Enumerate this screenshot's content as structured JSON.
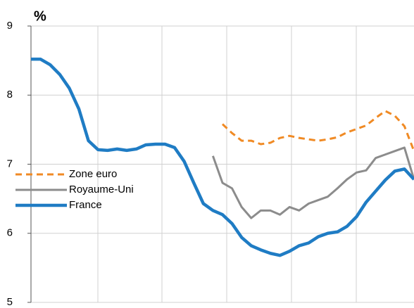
{
  "chart_data": {
    "type": "line",
    "y_label": "%",
    "categories": [
      null,
      null,
      null,
      null,
      null,
      null,
      null,
      null,
      null,
      null,
      null,
      null,
      null,
      null,
      null,
      null,
      null,
      null,
      null,
      null,
      null,
      null,
      null,
      null,
      null,
      null,
      null,
      null,
      null,
      null,
      null,
      null,
      null,
      null,
      null,
      null,
      null,
      null,
      null,
      null,
      null
    ],
    "series": [
      {
        "name": "Zone euro",
        "color": "#f08a24",
        "dash": true,
        "values": [
          null,
          null,
          null,
          null,
          null,
          null,
          null,
          null,
          null,
          null,
          null,
          null,
          null,
          null,
          null,
          null,
          null,
          null,
          null,
          null,
          7.58,
          7.45,
          7.34,
          7.34,
          7.29,
          7.31,
          7.38,
          7.41,
          7.38,
          7.36,
          7.34,
          7.36,
          7.39,
          7.46,
          7.51,
          7.56,
          7.67,
          7.77,
          7.7,
          7.55,
          7.19
        ]
      },
      {
        "name": "Royaume-Uni",
        "color": "#8c8c8c",
        "values": [
          null,
          null,
          null,
          null,
          null,
          null,
          null,
          null,
          null,
          null,
          null,
          null,
          null,
          null,
          null,
          null,
          null,
          null,
          null,
          7.12,
          6.73,
          6.65,
          6.38,
          6.22,
          6.33,
          6.33,
          6.27,
          6.38,
          6.33,
          6.43,
          6.48,
          6.53,
          6.65,
          6.78,
          6.88,
          6.91,
          7.09,
          7.14,
          7.19,
          7.24,
          6.78
        ]
      },
      {
        "name": "France",
        "color": "#1f7cc4",
        "values": [
          8.52,
          8.52,
          8.44,
          8.3,
          8.1,
          7.8,
          7.34,
          7.21,
          7.2,
          7.22,
          7.2,
          7.22,
          7.28,
          7.29,
          7.29,
          7.24,
          7.04,
          6.73,
          6.43,
          6.33,
          6.27,
          6.14,
          5.94,
          5.82,
          5.76,
          5.71,
          5.68,
          5.74,
          5.82,
          5.86,
          5.95,
          6.0,
          6.02,
          6.1,
          6.24,
          6.45,
          6.61,
          6.77,
          6.9,
          6.93,
          6.78
        ]
      }
    ],
    "ylim": [
      5,
      9
    ],
    "yticks": [
      5,
      6,
      7,
      8,
      9
    ],
    "grid": true,
    "legend": "left"
  }
}
